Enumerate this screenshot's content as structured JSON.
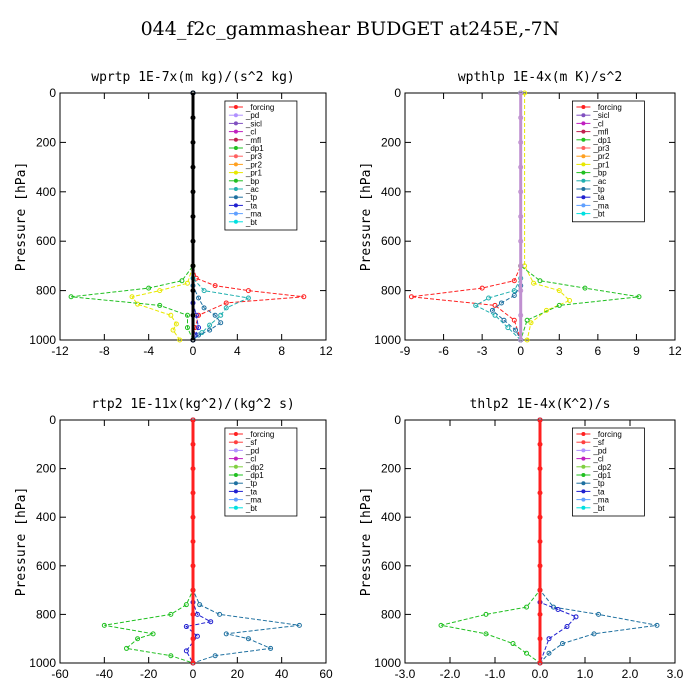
{
  "title": "044_f2c_gammashear  BUDGET at245E,-7N",
  "chart_data": [
    {
      "type": "line",
      "title": "wprtp  1E-7x(m kg)/(s^2 kg)",
      "ylabel": "Pressure [hPa]",
      "xlim": [
        -12,
        12
      ],
      "ylim": [
        1000,
        0
      ],
      "xticks": [
        "-12",
        "-8",
        "-4",
        "0",
        "4",
        "8",
        "12"
      ],
      "yticks": [
        "0",
        "200",
        "400",
        "600",
        "800",
        "1000"
      ],
      "legend": [
        "_forcing",
        "_pd",
        "_sicl",
        "_cl",
        "_mfl",
        "_dp1",
        "_pr3",
        "_pr2",
        "_pr1",
        "_bp",
        "_ac",
        "_tp",
        "_ta",
        "_ma",
        "_bt"
      ],
      "series": [
        {
          "name": "_dp1",
          "color": "#ff2020",
          "x": [
            0,
            0,
            0.3,
            2,
            5,
            10,
            3,
            0.5,
            0.2,
            0
          ],
          "y": [
            0,
            700,
            750,
            780,
            800,
            825,
            850,
            900,
            950,
            1000
          ]
        },
        {
          "name": "_pr1",
          "color": "#e8e800",
          "x": [
            0,
            0,
            -0.5,
            -3,
            -5.5,
            -5,
            -2,
            -1.5,
            -1.8,
            -1.2
          ],
          "y": [
            0,
            700,
            770,
            800,
            825,
            855,
            900,
            935,
            960,
            1000
          ]
        },
        {
          "name": "_bp",
          "color": "#20c020",
          "x": [
            0,
            0,
            -1,
            -4,
            -11,
            -3,
            -0.5,
            -0.5,
            0
          ],
          "y": [
            0,
            700,
            760,
            790,
            825,
            860,
            900,
            950,
            1000
          ]
        },
        {
          "name": "_ac",
          "color": "#20b0b0",
          "x": [
            0,
            0,
            1,
            5,
            3,
            2.5,
            1.5,
            0.8,
            0
          ],
          "y": [
            0,
            750,
            800,
            830,
            870,
            900,
            940,
            970,
            1000
          ]
        },
        {
          "name": "_tp",
          "color": "#1e70a0",
          "x": [
            0,
            0,
            0.5,
            1,
            2,
            2.5,
            1.5,
            0.5,
            0
          ],
          "y": [
            0,
            780,
            830,
            870,
            900,
            930,
            960,
            980,
            1000
          ]
        },
        {
          "name": "_ta",
          "color": "#2020d0",
          "x": [
            0,
            0,
            0.3,
            0.5,
            0.2,
            0
          ],
          "y": [
            0,
            850,
            900,
            950,
            980,
            1000
          ]
        },
        {
          "name": "_forcing",
          "color": "#000000",
          "x": [
            0,
            0,
            0,
            0,
            0,
            0,
            0,
            0,
            0,
            0,
            0
          ],
          "y": [
            0,
            100,
            200,
            300,
            400,
            500,
            600,
            700,
            800,
            900,
            1000
          ]
        }
      ]
    },
    {
      "type": "line",
      "title": "wpthlp  1E-4x(m K)/s^2",
      "ylabel": "Pressure [hPa]",
      "xlim": [
        -9,
        12
      ],
      "ylim": [
        1000,
        0
      ],
      "xticks": [
        "-9",
        "-6",
        "-3",
        "0",
        "3",
        "6",
        "9",
        "12"
      ],
      "yticks": [
        "0",
        "200",
        "400",
        "600",
        "800",
        "1000"
      ],
      "legend": [
        "_forcing",
        "_sicl",
        "_cl",
        "_mfl",
        "_dp1",
        "_pr3",
        "_pr2",
        "_pr1",
        "_bp",
        "_ac",
        "_tp",
        "_ta",
        "_ma",
        "_bt"
      ],
      "series": [
        {
          "name": "_dp1",
          "color": "#ff2020",
          "x": [
            0,
            0,
            -0.5,
            -3,
            -8.5,
            -2,
            -0.5,
            0
          ],
          "y": [
            0,
            700,
            760,
            790,
            825,
            860,
            920,
            1000
          ]
        },
        {
          "name": "_pr1",
          "color": "#e8e800",
          "x": [
            0.3,
            0.3,
            1,
            3,
            3.8,
            2,
            0.8,
            0.5
          ],
          "y": [
            0,
            700,
            770,
            800,
            840,
            880,
            930,
            1000
          ]
        },
        {
          "name": "_bp",
          "color": "#20c020",
          "x": [
            0,
            0,
            1.5,
            5,
            9.2,
            3,
            0.5,
            0
          ],
          "y": [
            0,
            700,
            760,
            790,
            825,
            860,
            920,
            1000
          ]
        },
        {
          "name": "_ac",
          "color": "#20b0b0",
          "x": [
            0,
            0,
            -0.5,
            -2.5,
            -3.5,
            -2,
            -1,
            0
          ],
          "y": [
            0,
            750,
            800,
            830,
            860,
            900,
            950,
            1000
          ]
        },
        {
          "name": "_tp",
          "color": "#1e70a0",
          "x": [
            0,
            0,
            -0.5,
            -1.5,
            -2.2,
            -1.3,
            -0.4,
            0
          ],
          "y": [
            0,
            780,
            820,
            850,
            880,
            920,
            960,
            1000
          ]
        },
        {
          "name": "_forcing",
          "color": "#c090d0",
          "x": [
            0,
            0,
            0,
            0,
            0,
            0,
            0,
            0,
            0,
            0,
            0
          ],
          "y": [
            0,
            100,
            200,
            300,
            400,
            500,
            600,
            700,
            800,
            900,
            1000
          ]
        }
      ]
    },
    {
      "type": "line",
      "title": "rtp2  1E-11x(kg^2)/(kg^2 s)",
      "ylabel": "Pressure [hPa]",
      "xlim": [
        -60,
        60
      ],
      "ylim": [
        1000,
        0
      ],
      "xticks": [
        "-60",
        "-40",
        "-20",
        "0",
        "20",
        "40",
        "60"
      ],
      "yticks": [
        "0",
        "200",
        "400",
        "600",
        "800",
        "1000"
      ],
      "legend": [
        "_forcing",
        "_sf",
        "_pd",
        "_cl",
        "_dp2",
        "_dp1",
        "_tp",
        "_ta",
        "_ma",
        "_bt"
      ],
      "series": [
        {
          "name": "_dp1",
          "color": "#20c020",
          "x": [
            0,
            0,
            -3,
            -10,
            -40,
            -18,
            -25,
            -30,
            -10,
            0
          ],
          "y": [
            0,
            700,
            760,
            800,
            845,
            880,
            900,
            940,
            970,
            1000
          ]
        },
        {
          "name": "_tp",
          "color": "#1e70a0",
          "x": [
            0,
            0,
            3,
            12,
            48,
            15,
            25,
            35,
            10,
            0
          ],
          "y": [
            0,
            700,
            760,
            800,
            845,
            880,
            900,
            940,
            970,
            1000
          ]
        },
        {
          "name": "_ta",
          "color": "#2020d0",
          "x": [
            0,
            0,
            2,
            8,
            -3,
            2,
            -3,
            0
          ],
          "y": [
            0,
            750,
            800,
            830,
            850,
            890,
            950,
            1000
          ]
        },
        {
          "name": "_forcing",
          "color": "#ff2020",
          "x": [
            0,
            0,
            0,
            0,
            0,
            0,
            0,
            0,
            0,
            0,
            0
          ],
          "y": [
            0,
            100,
            200,
            300,
            400,
            500,
            600,
            700,
            800,
            900,
            1000
          ]
        }
      ]
    },
    {
      "type": "line",
      "title": "thlp2  1E-4x(K^2)/s",
      "ylabel": "Pressure [hPa]",
      "xlim": [
        -3.0,
        3.0
      ],
      "ylim": [
        1000,
        0
      ],
      "xticks": [
        "-3.0",
        "-2.0",
        "-1.0",
        "0.0",
        "1.0",
        "2.0",
        "3.0"
      ],
      "yticks": [
        "0",
        "200",
        "400",
        "600",
        "800",
        "1000"
      ],
      "legend": [
        "_forcing",
        "_sf",
        "_pd",
        "_cl",
        "_dp2",
        "_dp1",
        "_tp",
        "_ta",
        "_ma",
        "_bt"
      ],
      "series": [
        {
          "name": "_dp1",
          "color": "#20c020",
          "x": [
            0,
            0,
            -0.3,
            -1.2,
            -2.2,
            -1.2,
            -0.6,
            -0.3,
            0
          ],
          "y": [
            0,
            700,
            770,
            800,
            845,
            880,
            920,
            960,
            1000
          ]
        },
        {
          "name": "_tp",
          "color": "#1e70a0",
          "x": [
            0,
            0,
            0.3,
            1.3,
            2.6,
            1.2,
            0.5,
            0.2,
            0
          ],
          "y": [
            0,
            700,
            770,
            800,
            845,
            880,
            920,
            960,
            1000
          ]
        },
        {
          "name": "_ta",
          "color": "#2020d0",
          "x": [
            0,
            0,
            0.4,
            0.8,
            0.6,
            0.2,
            0
          ],
          "y": [
            0,
            750,
            780,
            810,
            850,
            900,
            1000
          ]
        },
        {
          "name": "_forcing",
          "color": "#ff2020",
          "x": [
            0,
            0,
            0,
            0,
            0,
            0,
            0,
            0,
            0,
            0,
            0
          ],
          "y": [
            0,
            100,
            200,
            300,
            400,
            500,
            600,
            700,
            800,
            900,
            1000
          ]
        }
      ]
    }
  ]
}
